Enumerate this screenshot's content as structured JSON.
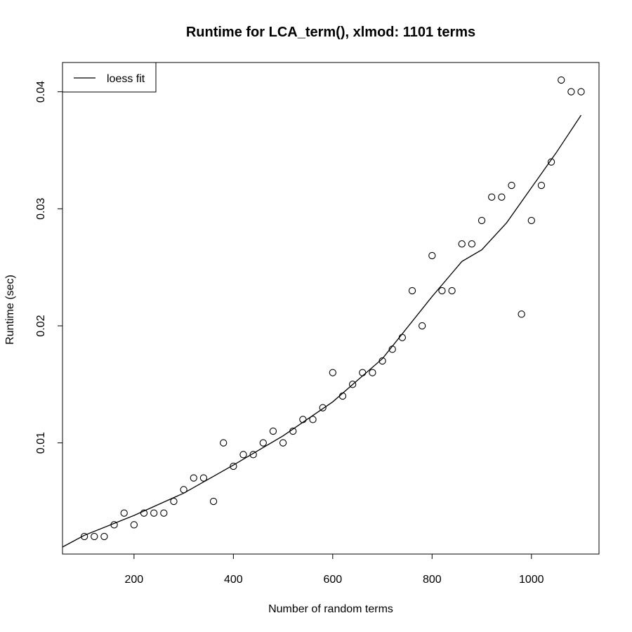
{
  "chart_data": {
    "type": "scatter",
    "title": "Runtime for LCA_term(), xlmod: 1101 terms",
    "xlabel": "Number of random terms",
    "ylabel": "Runtime (sec)",
    "xlim": [
      56,
      1136
    ],
    "ylim": [
      0.0005,
      0.0425
    ],
    "x_ticks": [
      200,
      400,
      600,
      800,
      1000
    ],
    "x_tick_labels": [
      "200",
      "400",
      "600",
      "800",
      "1000"
    ],
    "y_ticks": [
      0.01,
      0.02,
      0.03,
      0.04
    ],
    "y_tick_labels": [
      "0.01",
      "0.02",
      "0.03",
      "0.04"
    ],
    "legend": {
      "position": "top-left",
      "entries": [
        {
          "label": "loess fit",
          "style": "line"
        }
      ]
    },
    "grid": false,
    "points": {
      "x": [
        100,
        120,
        140,
        160,
        180,
        200,
        220,
        240,
        260,
        280,
        300,
        320,
        340,
        360,
        380,
        400,
        420,
        440,
        460,
        480,
        500,
        520,
        540,
        560,
        580,
        600,
        620,
        640,
        660,
        680,
        700,
        720,
        740,
        760,
        780,
        800,
        820,
        840,
        860,
        880,
        900,
        920,
        940,
        960,
        980,
        1000,
        1020,
        1040,
        1060,
        1080,
        1100
      ],
      "y": [
        0.002,
        0.002,
        0.002,
        0.003,
        0.004,
        0.003,
        0.004,
        0.004,
        0.004,
        0.005,
        0.006,
        0.007,
        0.007,
        0.005,
        0.01,
        0.008,
        0.009,
        0.009,
        0.01,
        0.011,
        0.01,
        0.011,
        0.012,
        0.012,
        0.013,
        0.016,
        0.014,
        0.015,
        0.016,
        0.016,
        0.017,
        0.018,
        0.019,
        0.023,
        0.02,
        0.026,
        0.023,
        0.023,
        0.027,
        0.027,
        0.029,
        0.031,
        0.031,
        0.032,
        0.021,
        0.029,
        0.032,
        0.034,
        0.041,
        0.04,
        0.04
      ]
    },
    "series": [
      {
        "name": "loess fit",
        "x": [
          56,
          100,
          200,
          300,
          400,
          500,
          600,
          700,
          800,
          840,
          860,
          900,
          950,
          1000,
          1050,
          1100
        ],
        "y": [
          0.0011,
          0.0021,
          0.0038,
          0.0057,
          0.0081,
          0.0106,
          0.0135,
          0.0172,
          0.0225,
          0.0245,
          0.0255,
          0.0265,
          0.0288,
          0.0318,
          0.0348,
          0.038
        ]
      }
    ]
  }
}
